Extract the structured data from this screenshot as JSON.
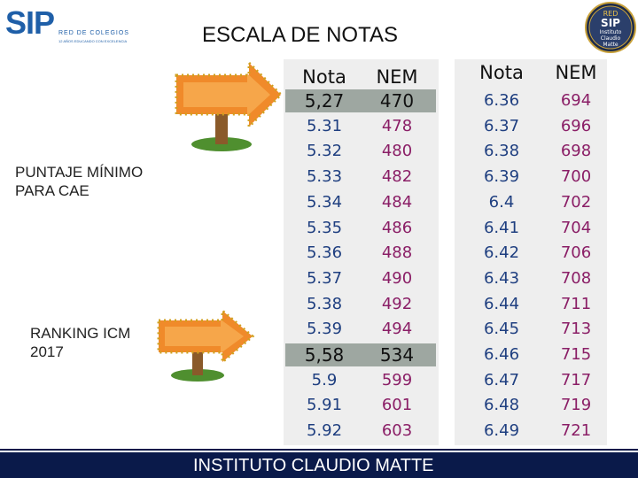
{
  "logo": {
    "main": "SIP",
    "subtitle": "RED DE COLEGIOS",
    "tagline": "12 AÑOS EDUCANDO CON EXCELENCIA"
  },
  "seal": {
    "top": "RED",
    "main": "SIP",
    "line1": "Instituto",
    "line2": "Claudio",
    "line3": "Matte"
  },
  "title": "ESCALA DE NOTAS",
  "labels": {
    "cae": [
      "PUNTAJE MÍNIMO",
      "PARA CAE"
    ],
    "icm": [
      "RANKING ICM",
      "2017"
    ]
  },
  "table_left": {
    "headers": {
      "nota": "Nota",
      "nem": "NEM"
    },
    "rows": [
      {
        "nota": "5,27",
        "nem": "470",
        "highlight": true
      },
      {
        "nota": "5.31",
        "nem": "478"
      },
      {
        "nota": "5.32",
        "nem": "480"
      },
      {
        "nota": "5.33",
        "nem": "482"
      },
      {
        "nota": "5.34",
        "nem": "484"
      },
      {
        "nota": "5.35",
        "nem": "486"
      },
      {
        "nota": "5.36",
        "nem": "488"
      },
      {
        "nota": "5.37",
        "nem": "490"
      },
      {
        "nota": "5.38",
        "nem": "492"
      },
      {
        "nota": "5.39",
        "nem": "494"
      },
      {
        "nota": "5,58",
        "nem": "534",
        "highlight": true
      },
      {
        "nota": "5.9",
        "nem": "599"
      },
      {
        "nota": "5.91",
        "nem": "601"
      },
      {
        "nota": "5.92",
        "nem": "603"
      }
    ]
  },
  "table_right": {
    "headers": {
      "nota": "Nota",
      "nem": "NEM"
    },
    "rows": [
      {
        "nota": "6.36",
        "nem": "694"
      },
      {
        "nota": "6.37",
        "nem": "696"
      },
      {
        "nota": "6.38",
        "nem": "698"
      },
      {
        "nota": "6.39",
        "nem": "700"
      },
      {
        "nota": "6.4",
        "nem": "702"
      },
      {
        "nota": "6.41",
        "nem": "704"
      },
      {
        "nota": "6.42",
        "nem": "706"
      },
      {
        "nota": "6.43",
        "nem": "708"
      },
      {
        "nota": "6.44",
        "nem": "711"
      },
      {
        "nota": "6.45",
        "nem": "713"
      },
      {
        "nota": "6.46",
        "nem": "715"
      },
      {
        "nota": "6.47",
        "nem": "717"
      },
      {
        "nota": "6.48",
        "nem": "719"
      },
      {
        "nota": "6.49",
        "nem": "721"
      }
    ]
  },
  "footer": "INSTITUTO CLAUDIO MATTE",
  "colors": {
    "nota": "#1f3f80",
    "nem": "#8a1e66",
    "highlight": "#9ea7a1",
    "footer_bg": "#0a1a4a",
    "logo": "#1f5fa8",
    "arrow": "#f08a2a"
  },
  "icons": {
    "arrow_sign": "arrow-signpost-icon"
  }
}
